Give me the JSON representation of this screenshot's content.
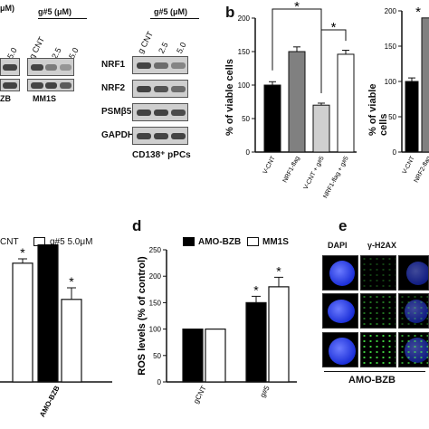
{
  "panel_a": {
    "left_header": "μM)",
    "left_conc_label": "5.0",
    "left_row_labels": [
      "ZB",
      "MM1S"
    ],
    "g5_header": "g#5 (μM)",
    "g5_lanes": [
      "g CNT",
      "2.5",
      "5.0"
    ],
    "right_header": "g#5 (μM)",
    "right_lanes": [
      "g CNT",
      "2.5",
      "5.0"
    ],
    "proteins": [
      "NRF1",
      "NRF2",
      "PSMβ5",
      "GAPDH"
    ],
    "pcs_caption": "CD138⁺ pPCs"
  },
  "panel_b": {
    "letter": "b",
    "ylabel": "% of viable cells",
    "second_ylabel": "% of viable cells",
    "star": "*"
  },
  "panel_c": {
    "legend_cnt": "CNT",
    "legend_g5": "g#5 5.0μM",
    "category": "AMO-BZB",
    "star": "*"
  },
  "panel_d": {
    "letter": "d",
    "legend_amo": "AMO-BZB",
    "legend_mm1s": "MM1S",
    "star": "*"
  },
  "panel_e": {
    "letter": "e",
    "col_dapi": "DAPI",
    "col_h2ax": "γ-H2AX",
    "caption": "AMO-BZB"
  },
  "chart_data": [
    {
      "type": "bar",
      "panel": "b",
      "categories": [
        "V-CNT",
        "NRF1-flag",
        "V-CNT + g#5",
        "NRF1-flag + g#5"
      ],
      "values": [
        100,
        150,
        70,
        146
      ],
      "errors": [
        5,
        7,
        3,
        6
      ],
      "colors": [
        "#000000",
        "#808080",
        "#cfcfcf",
        "#ffffff"
      ],
      "ylabel": "% of viable cells",
      "ylim": [
        0,
        200
      ],
      "yticks": [
        0,
        50,
        100,
        150,
        200
      ]
    },
    {
      "type": "bar",
      "panel": "b-right",
      "categories": [
        "V-CNT",
        "NRF2-flag"
      ],
      "values": [
        100,
        190
      ],
      "errors": [
        5,
        0
      ],
      "colors": [
        "#000000",
        "#808080"
      ],
      "ylabel": "% of viable cells",
      "ylim": [
        0,
        200
      ],
      "yticks": [
        0,
        50,
        100,
        150,
        200
      ]
    },
    {
      "type": "bar",
      "panel": "c",
      "categories": [
        "",
        "AMO-BZB"
      ],
      "series": [
        {
          "name": "CNT",
          "values": [
            null,
            100
          ]
        },
        {
          "name": "g#5 5.0μM",
          "values": [
            82,
            57
          ]
        }
      ],
      "errors": [
        [
          null,
          0
        ],
        [
          3,
          8
        ]
      ]
    },
    {
      "type": "bar",
      "panel": "d",
      "categories": [
        "gCNT",
        "g#5"
      ],
      "series": [
        {
          "name": "AMO-BZB",
          "values": [
            100,
            150
          ]
        },
        {
          "name": "MM1S",
          "values": [
            100,
            180
          ]
        }
      ],
      "errors": [
        [
          0,
          12
        ],
        [
          0,
          18
        ]
      ],
      "ylabel": "ROS levels (% of control)",
      "ylim": [
        0,
        250
      ],
      "yticks": [
        0,
        50,
        100,
        150,
        200,
        250
      ]
    }
  ]
}
